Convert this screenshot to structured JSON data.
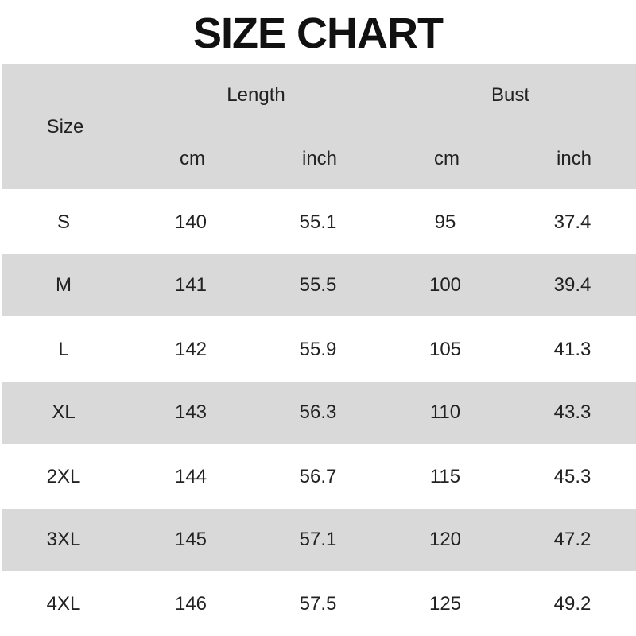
{
  "title": "SIZE CHART",
  "header": {
    "size": "Size",
    "length": "Length",
    "bust": "Bust",
    "units": [
      "cm",
      "inch",
      "cm",
      "inch"
    ]
  },
  "colors": {
    "stripe": "#d9d9d9",
    "text": "#222222"
  },
  "rows": [
    [
      "S",
      "140",
      "55.1",
      "95",
      "37.4"
    ],
    [
      "M",
      "141",
      "55.5",
      "100",
      "39.4"
    ],
    [
      "L",
      "142",
      "55.9",
      "105",
      "41.3"
    ],
    [
      "XL",
      "143",
      "56.3",
      "110",
      "43.3"
    ],
    [
      "2XL",
      "144",
      "56.7",
      "115",
      "45.3"
    ],
    [
      "3XL",
      "145",
      "57.1",
      "120",
      "47.2"
    ],
    [
      "4XL",
      "146",
      "57.5",
      "125",
      "49.2"
    ]
  ]
}
